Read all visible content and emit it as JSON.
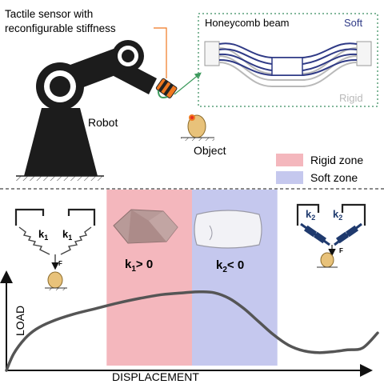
{
  "top": {
    "sensor_label_line1": "Tactile sensor with",
    "sensor_label_line2": "reconfigurable stiffness",
    "beam_title": "Honeycomb beam",
    "soft_label": "Soft",
    "rigid_label": "Rigid",
    "robot_label": "Robot",
    "object_label": "Object"
  },
  "legend": {
    "rigid_zone": "Rigid zone",
    "soft_zone": "Soft zone",
    "rigid_color": "#f4b7bd",
    "soft_color": "#c5c8ee"
  },
  "springs": {
    "left_k": "k",
    "left_sub": "1",
    "right_k": "k",
    "right_sub": "2",
    "force": "F"
  },
  "zones": {
    "rigid_stiffness_k": "k",
    "rigid_stiffness_sub": "1",
    "rigid_stiffness_rel": "> 0",
    "soft_stiffness_k": "k",
    "soft_stiffness_sub": "2",
    "soft_stiffness_rel": "< 0"
  },
  "axes": {
    "xlabel": "DISPLACEMENT",
    "ylabel": "LOAD"
  },
  "colors": {
    "soft_beam": "#2f3a86",
    "rigid_beam": "#b9b9b9",
    "robot": "#1c1c1c",
    "gripper": "#f07820",
    "curve": "#555555",
    "dotted_box": "#5aa07a"
  },
  "chart_data": {
    "type": "line",
    "title": "",
    "xlabel": "DISPLACEMENT",
    "ylabel": "LOAD",
    "x": [
      0,
      2,
      5,
      8,
      12,
      18,
      24,
      30,
      36,
      42,
      48,
      52,
      56,
      60,
      64,
      68,
      72,
      76,
      80,
      84,
      88,
      92,
      96,
      100
    ],
    "y": [
      0,
      18,
      34,
      44,
      52,
      60,
      66,
      72,
      77,
      81,
      83,
      84,
      83,
      77,
      66,
      52,
      38,
      27,
      21,
      19,
      20,
      22,
      24,
      40
    ],
    "xlim": [
      0,
      100
    ],
    "ylim": [
      0,
      100
    ],
    "regions": [
      {
        "name": "Rigid zone",
        "x": [
          27,
          50
        ]
      },
      {
        "name": "Soft zone",
        "x": [
          50,
          73
        ]
      }
    ]
  }
}
